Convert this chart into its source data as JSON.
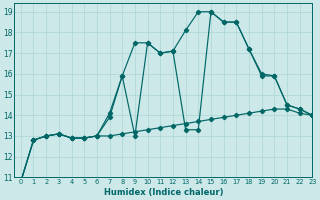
{
  "xlabel": "Humidex (Indice chaleur)",
  "ylabel": "",
  "bg_color": "#cce8e8",
  "line_color": "#006666",
  "grid_color": "#aad4d4",
  "xlim": [
    -0.5,
    23
  ],
  "ylim": [
    11,
    19.4
  ],
  "xticks": [
    0,
    1,
    2,
    3,
    4,
    5,
    6,
    7,
    8,
    9,
    10,
    11,
    12,
    13,
    14,
    15,
    16,
    17,
    18,
    19,
    20,
    21,
    22,
    23
  ],
  "yticks": [
    11,
    12,
    13,
    14,
    15,
    16,
    17,
    18,
    19
  ],
  "series": [
    {
      "x": [
        0,
        1,
        2,
        3,
        4,
        5,
        6,
        7,
        8,
        9,
        10,
        11,
        12,
        13,
        14,
        15,
        16,
        17,
        18,
        19,
        20,
        21,
        22,
        23
      ],
      "y": [
        10.8,
        12.8,
        13.0,
        13.1,
        12.9,
        12.9,
        13.0,
        13.0,
        13.1,
        13.2,
        13.3,
        13.4,
        13.5,
        13.6,
        13.7,
        13.8,
        13.9,
        14.0,
        14.1,
        14.2,
        14.3,
        14.3,
        14.1,
        14.0
      ]
    },
    {
      "x": [
        0,
        1,
        2,
        3,
        4,
        5,
        6,
        7,
        8,
        9,
        10,
        11,
        12,
        13,
        14,
        15,
        16,
        17,
        18,
        19,
        20,
        21,
        22,
        23
      ],
      "y": [
        10.8,
        12.8,
        13.0,
        13.1,
        12.9,
        12.9,
        13.0,
        13.9,
        15.9,
        13.0,
        17.5,
        17.0,
        17.1,
        13.3,
        13.3,
        19.0,
        18.5,
        18.5,
        17.2,
        15.9,
        15.9,
        14.5,
        14.3,
        14.0
      ]
    },
    {
      "x": [
        0,
        1,
        2,
        3,
        4,
        5,
        6,
        7,
        8,
        9,
        10,
        11,
        12,
        13,
        14,
        15,
        16,
        17,
        18,
        19,
        20,
        21,
        22,
        23
      ],
      "y": [
        10.8,
        12.8,
        13.0,
        13.1,
        12.9,
        12.9,
        13.0,
        14.1,
        15.9,
        17.5,
        17.5,
        17.0,
        17.1,
        18.1,
        19.0,
        19.0,
        18.5,
        18.5,
        17.2,
        16.0,
        15.9,
        14.5,
        14.3,
        14.0
      ]
    }
  ],
  "marker": "D",
  "markersize": 2.2,
  "linewidth": 0.85
}
